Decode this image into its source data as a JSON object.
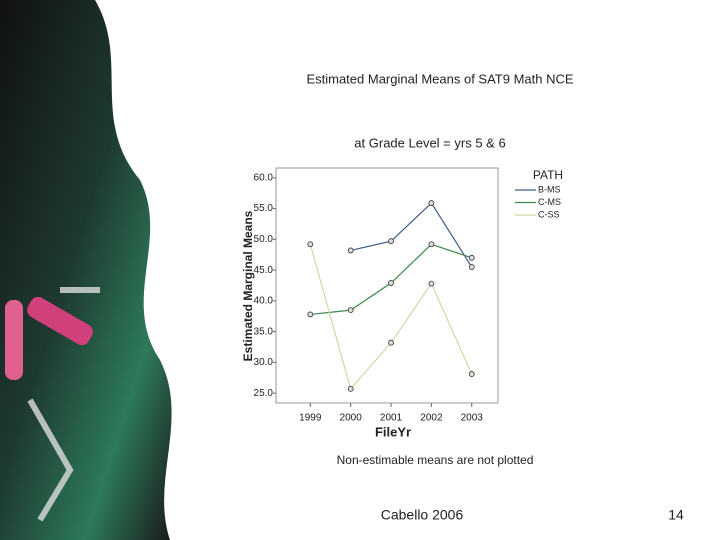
{
  "chart_data": {
    "type": "line",
    "title": "Estimated Marginal Means of SAT9 Math NCE",
    "subtitle": "at Grade Level = yrs 5 & 6",
    "x_label": "FileYr",
    "y_label": "Estimated Marginal Means",
    "legend_title": "PATH",
    "note": "Non-estimable means are not plotted",
    "x": [
      1999,
      2000,
      2001,
      2002,
      2003
    ],
    "xlim": [
      1998.15,
      2003.65
    ],
    "xticks": [
      1999,
      2000,
      2001,
      2002,
      2003
    ],
    "ylim": [
      23.4,
      61.6
    ],
    "yticks": [
      {
        "value": 25,
        "label": "25.0"
      },
      {
        "value": 30,
        "label": "30.0"
      },
      {
        "value": 35,
        "label": "35.0"
      },
      {
        "value": 40,
        "label": "40.0"
      },
      {
        "value": 45,
        "label": "45.0"
      },
      {
        "value": 50,
        "label": "50.0"
      },
      {
        "value": 55,
        "label": "55.0"
      },
      {
        "value": 60,
        "label": "60.0"
      }
    ],
    "series": [
      {
        "name": "B-MS",
        "color": "#3b5e8c",
        "values": [
          null,
          48.2,
          49.7,
          55.9,
          45.5
        ]
      },
      {
        "name": "C-MS",
        "color": "#3a8a4a",
        "values": [
          37.8,
          38.5,
          42.9,
          49.2,
          47.0
        ]
      },
      {
        "name": "C-SS",
        "color": "#d6d6a4",
        "values": [
          49.2,
          25.7,
          33.2,
          42.8,
          28.1
        ]
      }
    ]
  },
  "footer": {
    "text": "Cabello 2006",
    "page": "14"
  }
}
